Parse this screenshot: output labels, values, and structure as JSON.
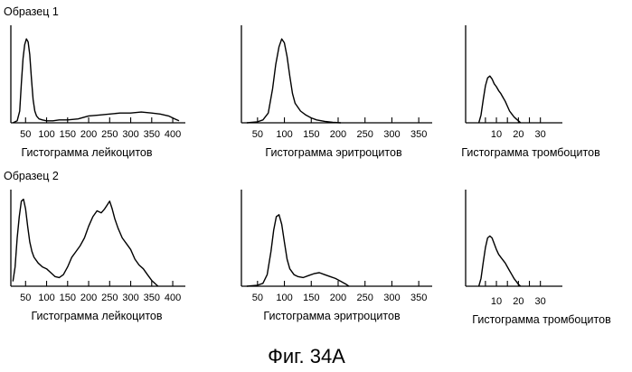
{
  "samples": [
    {
      "label": "Образец 1"
    },
    {
      "label": "Образец 2"
    }
  ],
  "figure_caption": "Фиг. 34А",
  "chart_data": [
    {
      "type": "line",
      "id": "s1-wbc",
      "sample": 0,
      "title": "Гистограмма лейкоцитов",
      "xlim": [
        15,
        430
      ],
      "xticks": [
        50,
        100,
        150,
        200,
        250,
        300,
        350,
        400
      ],
      "xticklabels": [
        "50",
        "100",
        "150",
        "200",
        "250",
        "300",
        "350",
        "400"
      ],
      "x": [
        20,
        30,
        36,
        40,
        44,
        48,
        52,
        56,
        60,
        64,
        68,
        72,
        76,
        82,
        90,
        100,
        115,
        130,
        150,
        175,
        200,
        225,
        250,
        275,
        300,
        325,
        350,
        370,
        390,
        405,
        415
      ],
      "y": [
        0,
        2,
        12,
        40,
        66,
        80,
        86,
        83,
        70,
        45,
        24,
        12,
        7,
        4,
        3,
        2,
        2,
        3,
        3,
        4,
        7,
        8,
        9,
        10,
        10,
        11,
        10,
        9,
        7,
        4,
        2
      ]
    },
    {
      "type": "line",
      "id": "s1-rbc",
      "sample": 0,
      "title": "Гистограмма эритроцитов",
      "xlim": [
        20,
        375
      ],
      "xticks": [
        50,
        100,
        150,
        200,
        250,
        300,
        350
      ],
      "xticklabels": [
        "50",
        "100",
        "150",
        "200",
        "250",
        "300",
        "350"
      ],
      "x": [
        30,
        50,
        60,
        70,
        78,
        84,
        90,
        95,
        100,
        105,
        110,
        115,
        120,
        130,
        140,
        150,
        160,
        175,
        190,
        205
      ],
      "y": [
        0,
        1,
        3,
        10,
        35,
        60,
        78,
        86,
        82,
        68,
        48,
        30,
        20,
        12,
        8,
        5,
        3,
        1.5,
        0.5,
        0
      ]
    },
    {
      "type": "line",
      "id": "s1-plt",
      "sample": 0,
      "title": "Гистограмма тромбоцитов",
      "xlim": [
        -4,
        40
      ],
      "xticks": [
        5,
        10,
        15,
        20,
        25,
        30
      ],
      "xticklabels": [
        "",
        "10",
        "",
        "20",
        "",
        "30"
      ],
      "x": [
        2,
        3,
        4,
        5,
        6,
        7,
        8,
        9,
        10,
        11,
        12,
        13,
        14,
        15,
        16,
        17,
        18,
        19,
        20,
        21
      ],
      "y": [
        0,
        8,
        24,
        38,
        46,
        48,
        45,
        40,
        37,
        33,
        30,
        26,
        22,
        17,
        12,
        9,
        6,
        4,
        2,
        0
      ]
    },
    {
      "type": "line",
      "id": "s2-wbc",
      "sample": 1,
      "title": "Гистограмма лейкоцитов",
      "xlim": [
        15,
        430
      ],
      "xticks": [
        50,
        100,
        150,
        200,
        250,
        300,
        350,
        400
      ],
      "xticklabels": [
        "50",
        "100",
        "150",
        "200",
        "250",
        "300",
        "350",
        "400"
      ],
      "x": [
        20,
        25,
        30,
        35,
        40,
        45,
        50,
        55,
        60,
        65,
        70,
        80,
        90,
        100,
        110,
        120,
        130,
        140,
        150,
        160,
        170,
        180,
        190,
        200,
        210,
        220,
        230,
        238,
        244,
        250,
        256,
        262,
        270,
        280,
        290,
        300,
        310,
        320,
        330,
        340,
        350,
        360,
        365
      ],
      "y": [
        5,
        20,
        50,
        72,
        88,
        90,
        80,
        62,
        46,
        36,
        30,
        24,
        20,
        18,
        14,
        10,
        9,
        12,
        20,
        30,
        36,
        42,
        50,
        62,
        72,
        78,
        76,
        80,
        84,
        88,
        80,
        70,
        60,
        50,
        44,
        38,
        28,
        22,
        18,
        12,
        6,
        2,
        0
      ]
    },
    {
      "type": "line",
      "id": "s2-rbc",
      "sample": 1,
      "title": "Гистограмма эритроцитов",
      "xlim": [
        20,
        375
      ],
      "xticks": [
        50,
        100,
        150,
        200,
        250,
        300,
        350
      ],
      "xticklabels": [
        "50",
        "100",
        "150",
        "200",
        "250",
        "300",
        "350"
      ],
      "x": [
        30,
        50,
        60,
        68,
        75,
        80,
        85,
        90,
        95,
        100,
        105,
        110,
        118,
        125,
        135,
        145,
        155,
        165,
        175,
        185,
        195,
        205,
        215,
        220
      ],
      "y": [
        0,
        1,
        3,
        12,
        36,
        58,
        72,
        74,
        64,
        46,
        28,
        18,
        12,
        10,
        9,
        11,
        13,
        14,
        12,
        10,
        8,
        5,
        2,
        0
      ]
    },
    {
      "type": "line",
      "id": "s2-plt",
      "sample": 1,
      "title": "Гистограмма тромбоцитов",
      "xlim": [
        -4,
        40
      ],
      "xticks": [
        5,
        10,
        15,
        20,
        25,
        30
      ],
      "xticklabels": [
        "",
        "10",
        "",
        "20",
        "",
        "30"
      ],
      "x": [
        2,
        3,
        4,
        5,
        6,
        7,
        8,
        9,
        10,
        11,
        12,
        13,
        14,
        15,
        16,
        17,
        18,
        19,
        20,
        21
      ],
      "y": [
        0,
        8,
        25,
        40,
        50,
        52,
        50,
        44,
        38,
        33,
        30,
        27,
        24,
        20,
        16,
        12,
        8,
        5,
        2,
        0
      ]
    }
  ]
}
